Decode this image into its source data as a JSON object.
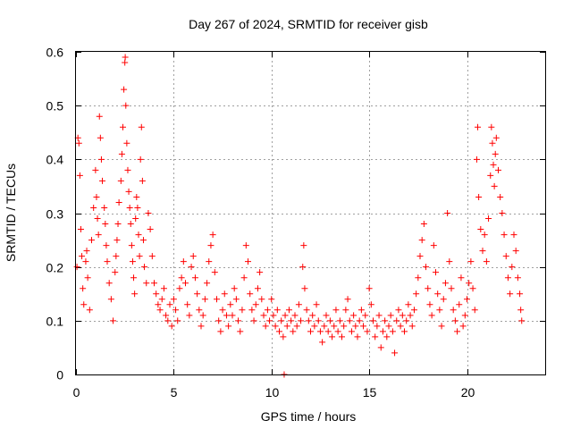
{
  "chart_data": {
    "type": "scatter",
    "title": "Day 267 of 2024, SRMTID for receiver gisb",
    "xlabel": "GPS time / hours",
    "ylabel": "SRMTID / TECUs",
    "xlim": [
      0,
      24
    ],
    "ylim": [
      0,
      0.6
    ],
    "xticks": [
      0,
      5,
      10,
      15,
      20
    ],
    "xtick_labels": [
      "0",
      "5",
      "10",
      "15",
      "20"
    ],
    "yticks": [
      0,
      0.1,
      0.2,
      0.3,
      0.4,
      0.5,
      0.6
    ],
    "ytick_labels": [
      "0",
      "0.1",
      "0.2",
      "0.3",
      "0.4",
      "0.5",
      "0.6"
    ],
    "grid": true,
    "marker": "+",
    "color": "#ff0000",
    "series": [
      {
        "name": "SRMTID",
        "points": [
          [
            0.05,
            0.2
          ],
          [
            0.1,
            0.44
          ],
          [
            0.15,
            0.43
          ],
          [
            0.2,
            0.37
          ],
          [
            0.25,
            0.27
          ],
          [
            0.3,
            0.22
          ],
          [
            0.35,
            0.16
          ],
          [
            0.4,
            0.13
          ],
          [
            0.5,
            0.21
          ],
          [
            0.55,
            0.23
          ],
          [
            0.6,
            0.18
          ],
          [
            0.7,
            0.12
          ],
          [
            0.8,
            0.25
          ],
          [
            0.9,
            0.31
          ],
          [
            1.0,
            0.38
          ],
          [
            1.05,
            0.33
          ],
          [
            1.1,
            0.29
          ],
          [
            1.15,
            0.26
          ],
          [
            1.2,
            0.48
          ],
          [
            1.25,
            0.44
          ],
          [
            1.3,
            0.4
          ],
          [
            1.35,
            0.36
          ],
          [
            1.45,
            0.31
          ],
          [
            1.5,
            0.28
          ],
          [
            1.55,
            0.24
          ],
          [
            1.6,
            0.21
          ],
          [
            1.7,
            0.17
          ],
          [
            1.8,
            0.14
          ],
          [
            1.9,
            0.1
          ],
          [
            2.0,
            0.19
          ],
          [
            2.05,
            0.22
          ],
          [
            2.1,
            0.25
          ],
          [
            2.15,
            0.28
          ],
          [
            2.2,
            0.32
          ],
          [
            2.3,
            0.36
          ],
          [
            2.35,
            0.41
          ],
          [
            2.4,
            0.46
          ],
          [
            2.45,
            0.53
          ],
          [
            2.5,
            0.58
          ],
          [
            2.52,
            0.59
          ],
          [
            2.55,
            0.5
          ],
          [
            2.6,
            0.43
          ],
          [
            2.65,
            0.38
          ],
          [
            2.7,
            0.34
          ],
          [
            2.75,
            0.31
          ],
          [
            2.8,
            0.28
          ],
          [
            2.85,
            0.24
          ],
          [
            2.9,
            0.21
          ],
          [
            2.95,
            0.18
          ],
          [
            3.0,
            0.15
          ],
          [
            3.05,
            0.29
          ],
          [
            3.1,
            0.33
          ],
          [
            3.15,
            0.31
          ],
          [
            3.2,
            0.26
          ],
          [
            3.25,
            0.22
          ],
          [
            3.3,
            0.4
          ],
          [
            3.35,
            0.46
          ],
          [
            3.4,
            0.36
          ],
          [
            3.45,
            0.25
          ],
          [
            3.5,
            0.2
          ],
          [
            3.6,
            0.17
          ],
          [
            3.7,
            0.3
          ],
          [
            3.8,
            0.27
          ],
          [
            3.9,
            0.22
          ],
          [
            4.0,
            0.17
          ],
          [
            4.1,
            0.15
          ],
          [
            4.2,
            0.13
          ],
          [
            4.3,
            0.12
          ],
          [
            4.4,
            0.14
          ],
          [
            4.5,
            0.16
          ],
          [
            4.6,
            0.11
          ],
          [
            4.7,
            0.1
          ],
          [
            4.8,
            0.13
          ],
          [
            4.9,
            0.09
          ],
          [
            5.0,
            0.14
          ],
          [
            5.1,
            0.12
          ],
          [
            5.2,
            0.1
          ],
          [
            5.3,
            0.16
          ],
          [
            5.4,
            0.18
          ],
          [
            5.5,
            0.21
          ],
          [
            5.6,
            0.17
          ],
          [
            5.7,
            0.13
          ],
          [
            5.8,
            0.11
          ],
          [
            5.9,
            0.2
          ],
          [
            6.0,
            0.22
          ],
          [
            6.1,
            0.18
          ],
          [
            6.2,
            0.15
          ],
          [
            6.3,
            0.12
          ],
          [
            6.4,
            0.09
          ],
          [
            6.5,
            0.11
          ],
          [
            6.6,
            0.14
          ],
          [
            6.7,
            0.17
          ],
          [
            6.8,
            0.21
          ],
          [
            6.9,
            0.24
          ],
          [
            7.0,
            0.26
          ],
          [
            7.1,
            0.19
          ],
          [
            7.2,
            0.14
          ],
          [
            7.3,
            0.1
          ],
          [
            7.4,
            0.08
          ],
          [
            7.5,
            0.12
          ],
          [
            7.6,
            0.15
          ],
          [
            7.7,
            0.11
          ],
          [
            7.8,
            0.09
          ],
          [
            7.9,
            0.13
          ],
          [
            8.0,
            0.11
          ],
          [
            8.1,
            0.16
          ],
          [
            8.2,
            0.14
          ],
          [
            8.3,
            0.1
          ],
          [
            8.4,
            0.08
          ],
          [
            8.5,
            0.12
          ],
          [
            8.6,
            0.18
          ],
          [
            8.7,
            0.24
          ],
          [
            8.8,
            0.21
          ],
          [
            8.9,
            0.15
          ],
          [
            9.0,
            0.12
          ],
          [
            9.1,
            0.1
          ],
          [
            9.2,
            0.13
          ],
          [
            9.3,
            0.16
          ],
          [
            9.4,
            0.19
          ],
          [
            9.5,
            0.14
          ],
          [
            9.6,
            0.11
          ],
          [
            9.7,
            0.09
          ],
          [
            9.8,
            0.12
          ],
          [
            9.9,
            0.1
          ],
          [
            10.0,
            0.14
          ],
          [
            10.1,
            0.11
          ],
          [
            10.2,
            0.09
          ],
          [
            10.3,
            0.12
          ],
          [
            10.4,
            0.08
          ],
          [
            10.5,
            0.1
          ],
          [
            10.6,
            0.07
          ],
          [
            10.65,
            0.0
          ],
          [
            10.7,
            0.11
          ],
          [
            10.8,
            0.09
          ],
          [
            10.9,
            0.12
          ],
          [
            11.0,
            0.1
          ],
          [
            11.1,
            0.08
          ],
          [
            11.2,
            0.11
          ],
          [
            11.3,
            0.09
          ],
          [
            11.4,
            0.13
          ],
          [
            11.5,
            0.1
          ],
          [
            11.6,
            0.2
          ],
          [
            11.65,
            0.24
          ],
          [
            11.7,
            0.16
          ],
          [
            11.8,
            0.12
          ],
          [
            11.9,
            0.1
          ],
          [
            12.0,
            0.08
          ],
          [
            12.1,
            0.11
          ],
          [
            12.2,
            0.09
          ],
          [
            12.3,
            0.13
          ],
          [
            12.4,
            0.1
          ],
          [
            12.5,
            0.08
          ],
          [
            12.6,
            0.06
          ],
          [
            12.7,
            0.09
          ],
          [
            12.8,
            0.11
          ],
          [
            12.9,
            0.08
          ],
          [
            13.0,
            0.1
          ],
          [
            13.1,
            0.07
          ],
          [
            13.2,
            0.09
          ],
          [
            13.3,
            0.12
          ],
          [
            13.4,
            0.08
          ],
          [
            13.5,
            0.1
          ],
          [
            13.6,
            0.07
          ],
          [
            13.7,
            0.09
          ],
          [
            13.8,
            0.12
          ],
          [
            13.9,
            0.14
          ],
          [
            14.0,
            0.1
          ],
          [
            14.1,
            0.08
          ],
          [
            14.2,
            0.11
          ],
          [
            14.3,
            0.09
          ],
          [
            14.4,
            0.07
          ],
          [
            14.5,
            0.1
          ],
          [
            14.6,
            0.12
          ],
          [
            14.7,
            0.09
          ],
          [
            14.8,
            0.11
          ],
          [
            14.9,
            0.08
          ],
          [
            15.0,
            0.16
          ],
          [
            15.1,
            0.13
          ],
          [
            15.2,
            0.1
          ],
          [
            15.3,
            0.07
          ],
          [
            15.4,
            0.09
          ],
          [
            15.5,
            0.11
          ],
          [
            15.6,
            0.05
          ],
          [
            15.7,
            0.08
          ],
          [
            15.8,
            0.1
          ],
          [
            15.9,
            0.07
          ],
          [
            16.0,
            0.09
          ],
          [
            16.1,
            0.11
          ],
          [
            16.2,
            0.08
          ],
          [
            16.3,
            0.04
          ],
          [
            16.4,
            0.1
          ],
          [
            16.5,
            0.12
          ],
          [
            16.6,
            0.09
          ],
          [
            16.7,
            0.11
          ],
          [
            16.8,
            0.08
          ],
          [
            16.9,
            0.1
          ],
          [
            17.0,
            0.13
          ],
          [
            17.1,
            0.11
          ],
          [
            17.2,
            0.09
          ],
          [
            17.3,
            0.12
          ],
          [
            17.4,
            0.15
          ],
          [
            17.5,
            0.18
          ],
          [
            17.6,
            0.22
          ],
          [
            17.7,
            0.25
          ],
          [
            17.8,
            0.28
          ],
          [
            17.9,
            0.2
          ],
          [
            18.0,
            0.16
          ],
          [
            18.1,
            0.13
          ],
          [
            18.2,
            0.11
          ],
          [
            18.3,
            0.24
          ],
          [
            18.4,
            0.19
          ],
          [
            18.5,
            0.15
          ],
          [
            18.6,
            0.12
          ],
          [
            18.7,
            0.09
          ],
          [
            18.8,
            0.14
          ],
          [
            18.9,
            0.17
          ],
          [
            19.0,
            0.3
          ],
          [
            19.1,
            0.21
          ],
          [
            19.2,
            0.16
          ],
          [
            19.3,
            0.12
          ],
          [
            19.4,
            0.1
          ],
          [
            19.5,
            0.08
          ],
          [
            19.6,
            0.13
          ],
          [
            19.7,
            0.18
          ],
          [
            19.8,
            0.09
          ],
          [
            19.9,
            0.11
          ],
          [
            20.0,
            0.14
          ],
          [
            20.1,
            0.17
          ],
          [
            20.2,
            0.21
          ],
          [
            20.3,
            0.16
          ],
          [
            20.4,
            0.12
          ],
          [
            20.5,
            0.4
          ],
          [
            20.55,
            0.46
          ],
          [
            20.6,
            0.33
          ],
          [
            20.7,
            0.27
          ],
          [
            20.8,
            0.23
          ],
          [
            20.9,
            0.26
          ],
          [
            21.0,
            0.21
          ],
          [
            21.1,
            0.29
          ],
          [
            21.2,
            0.37
          ],
          [
            21.25,
            0.46
          ],
          [
            21.3,
            0.43
          ],
          [
            21.35,
            0.39
          ],
          [
            21.4,
            0.35
          ],
          [
            21.45,
            0.41
          ],
          [
            21.5,
            0.44
          ],
          [
            21.6,
            0.38
          ],
          [
            21.7,
            0.33
          ],
          [
            21.8,
            0.3
          ],
          [
            21.9,
            0.26
          ],
          [
            22.0,
            0.22
          ],
          [
            22.1,
            0.18
          ],
          [
            22.2,
            0.15
          ],
          [
            22.3,
            0.2
          ],
          [
            22.4,
            0.26
          ],
          [
            22.5,
            0.23
          ],
          [
            22.6,
            0.18
          ],
          [
            22.7,
            0.15
          ],
          [
            22.75,
            0.12
          ],
          [
            22.8,
            0.1
          ]
        ]
      }
    ]
  }
}
